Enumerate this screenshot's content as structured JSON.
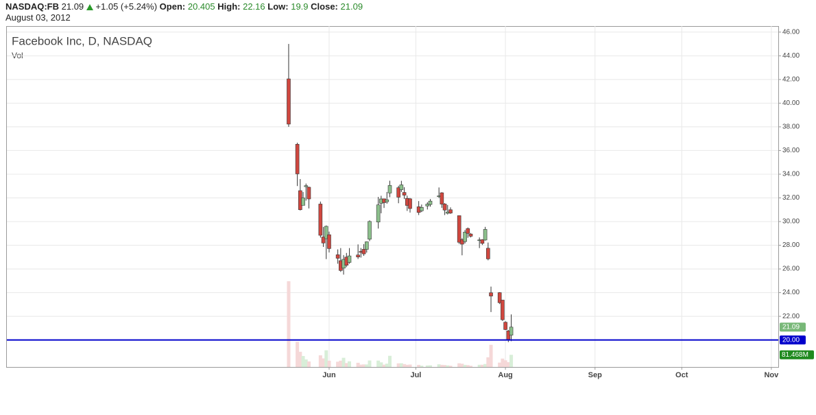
{
  "chart_data": {
    "type": "candlestick",
    "header": {
      "symbol": "NASDAQ:FB",
      "last": "21.09",
      "change": "+1.05 (+5.24%)",
      "fields": [
        {
          "label": "Open:",
          "value": 20.405
        },
        {
          "label": "High:",
          "value": 22.16
        },
        {
          "label": "Low:",
          "value": 19.9
        },
        {
          "label": "Close:",
          "value": 21.09
        }
      ],
      "date": "August 03, 2012"
    },
    "title": "Facebook Inc, D, NASDAQ",
    "volume_title": "Vol",
    "x": [
      18,
      21,
      22,
      23,
      24,
      25,
      29,
      30,
      31,
      32,
      35,
      36,
      37,
      38,
      39,
      42,
      43,
      44,
      45,
      46,
      49,
      50,
      51,
      52,
      53,
      56,
      57,
      58,
      59,
      60,
      63,
      64,
      66,
      67,
      70,
      71,
      72,
      73,
      74,
      77,
      78,
      79,
      80,
      81,
      84,
      85,
      86,
      87,
      88,
      91,
      92,
      93,
      94,
      95
    ],
    "open": [
      42.05,
      36.53,
      32.61,
      31.37,
      32.95,
      32.9,
      31.48,
      28.7,
      28.55,
      28.89,
      27.2,
      26.7,
      26.07,
      27.0,
      26.55,
      27.18,
      27.48,
      27.66,
      27.65,
      28.51,
      29.96,
      31.54,
      31.92,
      31.67,
      32.41,
      32.86,
      32.69,
      32.46,
      31.96,
      31.92,
      31.25,
      30.91,
      31.32,
      31.44,
      32.1,
      32.43,
      31.48,
      30.7,
      31.0,
      30.5,
      28.48,
      28.31,
      29.41,
      28.95,
      28.4,
      28.47,
      28.44,
      27.75,
      23.99,
      24.0,
      23.37,
      21.5,
      20.77,
      20.405
    ],
    "high": [
      45.0,
      36.66,
      33.59,
      32.5,
      33.21,
      32.95,
      31.69,
      29.55,
      29.67,
      29.15,
      27.65,
      27.76,
      27.17,
      27.35,
      27.76,
      28.07,
      27.77,
      28.1,
      28.32,
      30.1,
      32.08,
      32.18,
      31.93,
      32.5,
      33.45,
      33.02,
      33.44,
      32.9,
      32.19,
      31.99,
      31.73,
      31.44,
      31.63,
      31.9,
      32.88,
      32.48,
      31.56,
      31.4,
      31.2,
      30.5,
      28.59,
      29.29,
      29.5,
      29.03,
      28.66,
      28.51,
      29.55,
      28.23,
      24.51,
      24.04,
      23.37,
      21.58,
      20.84,
      22.16
    ],
    "low": [
      38.0,
      33.0,
      30.94,
      31.36,
      31.77,
      31.11,
      28.65,
      27.86,
      26.83,
      27.39,
      26.44,
      25.75,
      25.52,
      26.15,
      26.44,
      26.84,
      26.96,
      27.1,
      27.38,
      28.35,
      29.41,
      30.7,
      31.15,
      31.51,
      32.06,
      31.55,
      32.5,
      31.9,
      30.9,
      30.76,
      30.55,
      30.8,
      31.02,
      31.26,
      31.99,
      31.16,
      30.55,
      30.6,
      30.65,
      28.11,
      27.15,
      28.15,
      28.63,
      28.66,
      27.76,
      28.02,
      28.39,
      26.73,
      22.36,
      23.03,
      21.61,
      20.84,
      19.82,
      19.9
    ],
    "close": [
      38.23,
      34.03,
      31.0,
      32.0,
      33.03,
      31.91,
      28.84,
      28.19,
      29.6,
      27.72,
      26.9,
      25.87,
      26.81,
      26.31,
      27.1,
      27.01,
      27.4,
      27.27,
      28.29,
      30.01,
      31.41,
      31.91,
      31.6,
      31.84,
      33.05,
      32.06,
      33.1,
      32.23,
      31.36,
      31.1,
      30.77,
      31.2,
      31.47,
      31.73,
      32.17,
      31.47,
      30.97,
      30.81,
      30.72,
      28.25,
      28.09,
      29.11,
      29.0,
      28.76,
      28.45,
      28.16,
      29.34,
      26.85,
      23.71,
      23.15,
      21.71,
      20.88,
      20.04,
      21.09
    ],
    "volume": [
      573.6,
      168.2,
      101.8,
      73.6,
      50.2,
      37.1,
      78.1,
      57.3,
      111.6,
      41.9,
      35.2,
      42.3,
      61.5,
      26.2,
      38.0,
      28.2,
      15.8,
      17.1,
      16.8,
      43.6,
      42.9,
      30.8,
      15.6,
      21.9,
      74.8,
      24.3,
      24.8,
      19.3,
      14.6,
      16.3,
      14.1,
      8.8,
      10.0,
      10.9,
      17.8,
      14.3,
      13.0,
      10.6,
      8.1,
      24.7,
      21.7,
      14.1,
      12.4,
      8.0,
      14.7,
      14.9,
      19.9,
      64.6,
      148.3,
      29.3,
      56.2,
      44.6,
      32.1,
      81.468
    ],
    "volume_label": "81.468M",
    "up_color": "#8cc08c",
    "down_color": "#d0473f",
    "up_volume_color": "#d8eed8",
    "down_volume_color": "#f5d8d8",
    "xlim": [
      -79.5,
      187.4
    ],
    "ylim": [
      17.72,
      46.51
    ],
    "vlim": [
      0,
      2280
    ],
    "xticks": [
      {
        "value": 32,
        "label": "Jun"
      },
      {
        "value": 62,
        "label": "Jul"
      },
      {
        "value": 93,
        "label": "Aug"
      },
      {
        "value": 124,
        "label": "Sep"
      },
      {
        "value": 154,
        "label": "Oct"
      },
      {
        "value": 185,
        "label": "Nov"
      }
    ],
    "yticks": [
      {
        "value": 22,
        "label": "22.00"
      },
      {
        "value": 24,
        "label": "24.00"
      },
      {
        "value": 26,
        "label": "26.00"
      },
      {
        "value": 28,
        "label": "28.00"
      },
      {
        "value": 30,
        "label": "30.00"
      },
      {
        "value": 32,
        "label": "32.00"
      },
      {
        "value": 34,
        "label": "34.00"
      },
      {
        "value": 36,
        "label": "36.00"
      },
      {
        "value": 38,
        "label": "38.00"
      },
      {
        "value": 40,
        "label": "40.00"
      },
      {
        "value": 42,
        "label": "42.00"
      },
      {
        "value": 44,
        "label": "44.00"
      },
      {
        "value": 46,
        "label": "46.00"
      }
    ],
    "price_line": {
      "value": 20,
      "label": "20.00",
      "color": "#0000cc"
    },
    "grid": true
  }
}
